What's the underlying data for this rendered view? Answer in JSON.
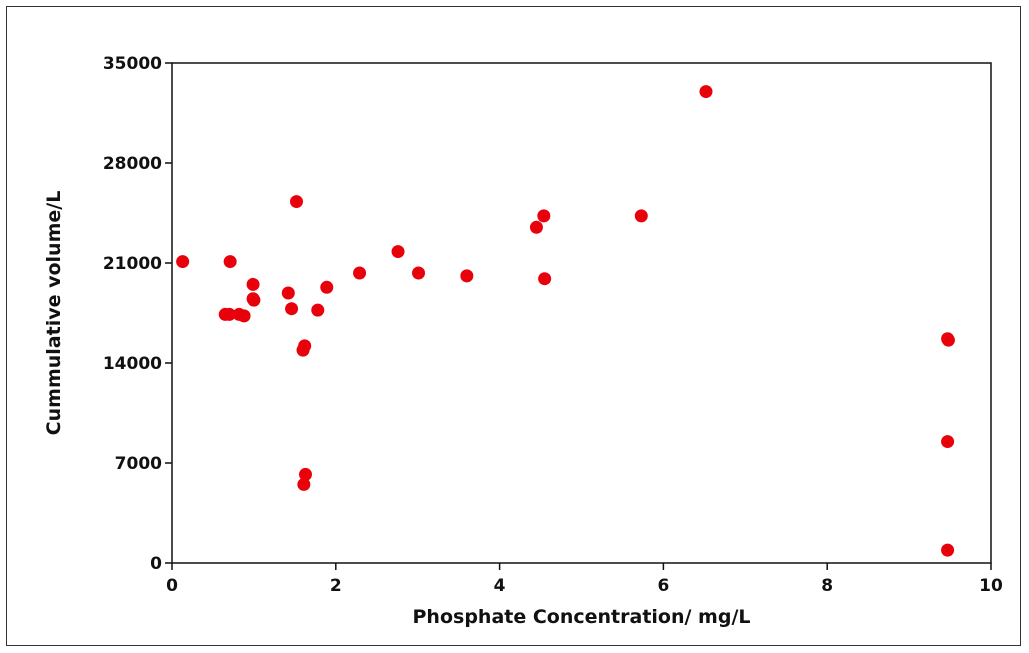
{
  "chart_data": {
    "type": "scatter",
    "title": "",
    "xlabel": "Phosphate Concentration/ mg/L",
    "ylabel": "Cummulative volume/L",
    "xlim": [
      0,
      10
    ],
    "ylim": [
      0,
      35000
    ],
    "x_ticks": [
      "0",
      "2",
      "4",
      "6",
      "8",
      "10"
    ],
    "y_ticks": [
      "0",
      "7000",
      "14000",
      "21000",
      "28000",
      "35000"
    ],
    "grid": false,
    "legend": "none",
    "marker_color": "#e8000b",
    "points": [
      {
        "x": 0.13,
        "y": 21100
      },
      {
        "x": 0.65,
        "y": 17400
      },
      {
        "x": 0.7,
        "y": 17400
      },
      {
        "x": 0.71,
        "y": 21100
      },
      {
        "x": 0.82,
        "y": 17400
      },
      {
        "x": 0.88,
        "y": 17300
      },
      {
        "x": 0.99,
        "y": 19500
      },
      {
        "x": 0.99,
        "y": 18500
      },
      {
        "x": 1.0,
        "y": 18400
      },
      {
        "x": 1.42,
        "y": 18900
      },
      {
        "x": 1.46,
        "y": 17800
      },
      {
        "x": 1.52,
        "y": 25300
      },
      {
        "x": 1.6,
        "y": 14900
      },
      {
        "x": 1.62,
        "y": 15200
      },
      {
        "x": 1.61,
        "y": 5500
      },
      {
        "x": 1.63,
        "y": 6200
      },
      {
        "x": 1.78,
        "y": 17700
      },
      {
        "x": 1.89,
        "y": 19300
      },
      {
        "x": 2.29,
        "y": 20300
      },
      {
        "x": 2.76,
        "y": 21800
      },
      {
        "x": 3.01,
        "y": 20300
      },
      {
        "x": 3.6,
        "y": 20100
      },
      {
        "x": 4.45,
        "y": 23500
      },
      {
        "x": 4.54,
        "y": 24300
      },
      {
        "x": 4.55,
        "y": 19900
      },
      {
        "x": 5.73,
        "y": 24300
      },
      {
        "x": 6.52,
        "y": 33000
      },
      {
        "x": 9.47,
        "y": 15700
      },
      {
        "x": 9.48,
        "y": 15600
      },
      {
        "x": 9.47,
        "y": 8500
      },
      {
        "x": 9.47,
        "y": 900
      }
    ]
  }
}
